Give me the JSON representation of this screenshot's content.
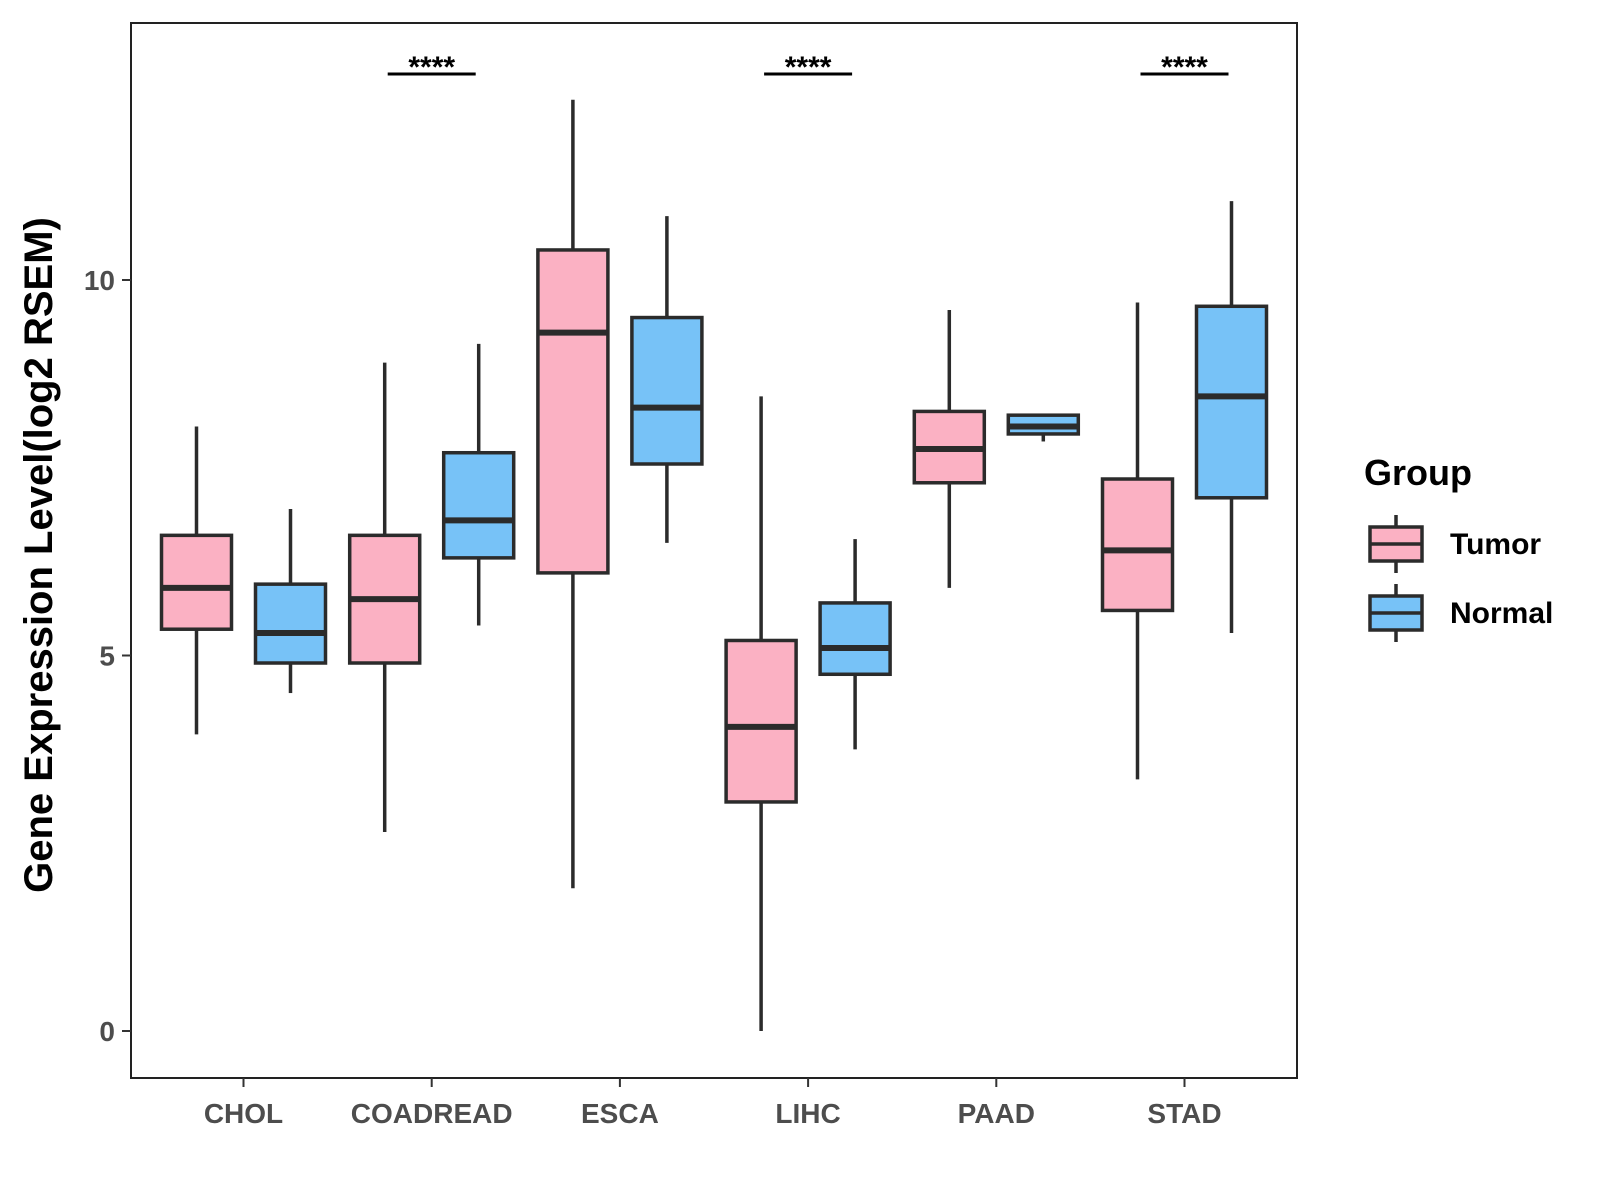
{
  "chart_data": {
    "type": "box",
    "title": "",
    "xlabel": "",
    "ylabel": "Gene Expression Level(log2 RSEM)",
    "ylim": [
      -0.6,
      13.4
    ],
    "yticks": [
      0,
      5,
      10
    ],
    "grid": false,
    "legend": {
      "title": "Group",
      "position": "right",
      "entries": [
        "Tumor",
        "Normal"
      ]
    },
    "categories": [
      "CHOL",
      "COADREAD",
      "ESCA",
      "LIHC",
      "PAAD",
      "STAD"
    ],
    "series": [
      {
        "name": "Tumor",
        "color": "#FBB1C3",
        "boxes": [
          {
            "whisker_low": 3.95,
            "q1": 5.35,
            "median": 5.9,
            "q3": 6.6,
            "whisker_high": 8.05
          },
          {
            "whisker_low": 2.65,
            "q1": 4.9,
            "median": 5.75,
            "q3": 6.6,
            "whisker_high": 8.9
          },
          {
            "whisker_low": 1.9,
            "q1": 6.1,
            "median": 9.3,
            "q3": 10.4,
            "whisker_high": 12.4
          },
          {
            "whisker_low": 0.0,
            "q1": 3.05,
            "median": 4.05,
            "q3": 5.2,
            "whisker_high": 8.45
          },
          {
            "whisker_low": 5.9,
            "q1": 7.3,
            "median": 7.75,
            "q3": 8.25,
            "whisker_high": 9.6
          },
          {
            "whisker_low": 3.35,
            "q1": 5.6,
            "median": 6.4,
            "q3": 7.35,
            "whisker_high": 9.7
          }
        ]
      },
      {
        "name": "Normal",
        "color": "#77C2F7",
        "boxes": [
          {
            "whisker_low": 4.5,
            "q1": 4.9,
            "median": 5.3,
            "q3": 5.95,
            "whisker_high": 6.95
          },
          {
            "whisker_low": 5.4,
            "q1": 6.3,
            "median": 6.8,
            "q3": 7.7,
            "whisker_high": 9.15
          },
          {
            "whisker_low": 6.5,
            "q1": 7.55,
            "median": 8.3,
            "q3": 9.5,
            "whisker_high": 10.85
          },
          {
            "whisker_low": 3.75,
            "q1": 4.75,
            "median": 5.1,
            "q3": 5.7,
            "whisker_high": 6.55
          },
          {
            "whisker_low": 7.85,
            "q1": 7.95,
            "median": 8.05,
            "q3": 8.2,
            "whisker_high": 8.2
          },
          {
            "whisker_low": 5.3,
            "q1": 7.1,
            "median": 8.45,
            "q3": 9.65,
            "whisker_high": 11.05
          }
        ]
      }
    ],
    "annotations": [
      {
        "category": "COADREAD",
        "label": "****"
      },
      {
        "category": "LIHC",
        "label": "****"
      },
      {
        "category": "STAD",
        "label": "****"
      }
    ]
  }
}
